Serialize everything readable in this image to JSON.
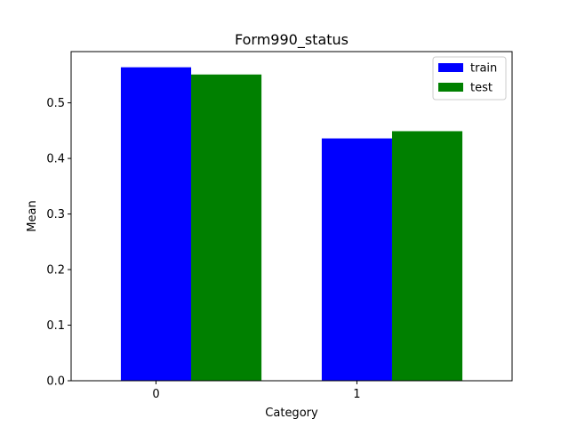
{
  "chart_data": {
    "type": "bar",
    "title": "Form990_status",
    "xlabel": "Category",
    "ylabel": "Mean",
    "categories": [
      "0",
      "1"
    ],
    "series": [
      {
        "name": "train",
        "color": "#0000ff",
        "values": [
          0.564,
          0.436
        ]
      },
      {
        "name": "test",
        "color": "#008000",
        "values": [
          0.551,
          0.449
        ]
      }
    ],
    "ylim": [
      0,
      0.5922
    ],
    "yticks": [
      0.0,
      0.1,
      0.2,
      0.3,
      0.4,
      0.5
    ],
    "ytick_labels": [
      "0.0",
      "0.1",
      "0.2",
      "0.3",
      "0.4",
      "0.5"
    ],
    "grid": false,
    "legend_position": "top-right"
  }
}
